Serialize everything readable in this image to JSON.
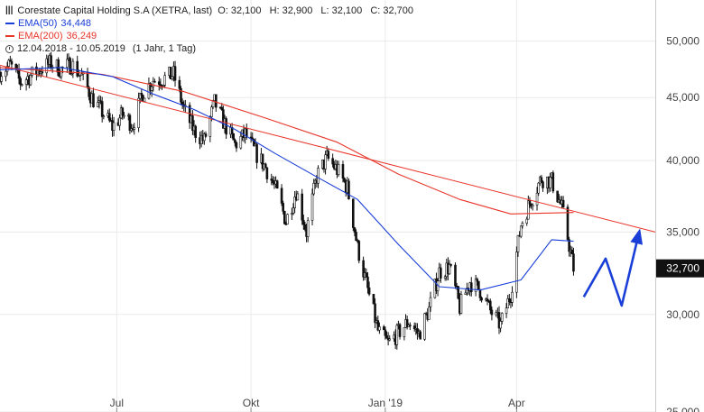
{
  "legend": {
    "title": "Corestate Capital Holding S.A (XETRA, last)",
    "ohlc": {
      "o": "O: 32,100",
      "h": "H: 32,900",
      "l": "L: 32,100",
      "c": "C: 32,700"
    },
    "ema50": {
      "label": "EMA(50)",
      "value": "34,448",
      "color": "#1a3fd8"
    },
    "ema200": {
      "label": "EMA(200)",
      "value": "36,249",
      "color": "#e8352a"
    },
    "range": "12.04.2018 - 10.05.2019",
    "period": "(1 Jahr, 1 Tag)"
  },
  "chart_data": {
    "type": "candlestick-line",
    "y_scale": "log",
    "ylim": [
      25,
      54
    ],
    "y_ticks": [
      {
        "value": 25,
        "label": "25,000"
      },
      {
        "value": 30,
        "label": "30,000"
      },
      {
        "value": 35,
        "label": "35,000"
      },
      {
        "value": 40,
        "label": "40,000"
      },
      {
        "value": 45,
        "label": "45,000"
      },
      {
        "value": 50,
        "label": "50,000"
      }
    ],
    "x_ticks": [
      {
        "date": "2018-07-01",
        "label": "Jul"
      },
      {
        "date": "2018-10-01",
        "label": "Okt"
      },
      {
        "date": "2019-01-01",
        "label": "Jan '19"
      },
      {
        "date": "2019-04-01",
        "label": "Apr"
      }
    ],
    "x_range": [
      "2018-04-12",
      "2019-07-05"
    ],
    "current_price": {
      "value": 32.7,
      "label": "32,700",
      "color": "#111111"
    },
    "close_series": [
      [
        "2018-04-12",
        47.2
      ],
      [
        "2018-04-19",
        47.8
      ],
      [
        "2018-04-26",
        46.3
      ],
      [
        "2018-05-03",
        46.9
      ],
      [
        "2018-05-10",
        47.5
      ],
      [
        "2018-05-17",
        48.0
      ],
      [
        "2018-05-24",
        47.4
      ],
      [
        "2018-05-31",
        47.9
      ],
      [
        "2018-06-07",
        46.8
      ],
      [
        "2018-06-14",
        45.0
      ],
      [
        "2018-06-21",
        43.8
      ],
      [
        "2018-06-28",
        42.6
      ],
      [
        "2018-07-05",
        43.6
      ],
      [
        "2018-07-12",
        42.8
      ],
      [
        "2018-07-19",
        45.4
      ],
      [
        "2018-07-26",
        46.5
      ],
      [
        "2018-08-02",
        46.6
      ],
      [
        "2018-08-09",
        47.0
      ],
      [
        "2018-08-16",
        44.0
      ],
      [
        "2018-08-23",
        42.3
      ],
      [
        "2018-08-30",
        41.5
      ],
      [
        "2018-09-06",
        44.6
      ],
      [
        "2018-09-13",
        42.8
      ],
      [
        "2018-09-20",
        41.2
      ],
      [
        "2018-09-27",
        42.0
      ],
      [
        "2018-10-04",
        40.6
      ],
      [
        "2018-10-11",
        39.5
      ],
      [
        "2018-10-18",
        37.9
      ],
      [
        "2018-10-25",
        35.7
      ],
      [
        "2018-11-01",
        37.8
      ],
      [
        "2018-11-08",
        35.0
      ],
      [
        "2018-11-15",
        38.8
      ],
      [
        "2018-11-22",
        40.2
      ],
      [
        "2018-11-29",
        39.3
      ],
      [
        "2018-12-06",
        38.0
      ],
      [
        "2018-12-13",
        34.0
      ],
      [
        "2018-12-20",
        31.4
      ],
      [
        "2018-12-27",
        29.1
      ],
      [
        "2019-01-03",
        28.4
      ],
      [
        "2019-01-10",
        29.0
      ],
      [
        "2019-01-17",
        29.6
      ],
      [
        "2019-01-24",
        28.9
      ],
      [
        "2019-01-31",
        30.3
      ],
      [
        "2019-02-07",
        32.5
      ],
      [
        "2019-02-14",
        32.8
      ],
      [
        "2019-02-21",
        30.4
      ],
      [
        "2019-02-28",
        31.9
      ],
      [
        "2019-03-07",
        31.4
      ],
      [
        "2019-03-14",
        30.2
      ],
      [
        "2019-03-21",
        29.4
      ],
      [
        "2019-03-28",
        31.2
      ],
      [
        "2019-04-04",
        35.5
      ],
      [
        "2019-04-11",
        37.2
      ],
      [
        "2019-04-18",
        38.7
      ],
      [
        "2019-04-25",
        38.5
      ],
      [
        "2019-05-02",
        36.6
      ],
      [
        "2019-05-10",
        32.7
      ]
    ],
    "ema50_series": [
      [
        "2018-04-12",
        47.4
      ],
      [
        "2018-05-24",
        47.6
      ],
      [
        "2018-06-28",
        46.8
      ],
      [
        "2018-07-26",
        45.3
      ],
      [
        "2018-08-23",
        44.0
      ],
      [
        "2018-09-20",
        42.4
      ],
      [
        "2018-10-18",
        40.5
      ],
      [
        "2018-11-15",
        38.8
      ],
      [
        "2018-12-13",
        37.2
      ],
      [
        "2019-01-10",
        34.2
      ],
      [
        "2019-02-07",
        31.6
      ],
      [
        "2019-03-07",
        31.4
      ],
      [
        "2019-04-04",
        32.0
      ],
      [
        "2019-04-25",
        34.5
      ],
      [
        "2019-05-10",
        34.4
      ]
    ],
    "ema200_series": [
      [
        "2018-04-12",
        47.6
      ],
      [
        "2018-06-21",
        47.0
      ],
      [
        "2018-08-16",
        45.5
      ],
      [
        "2018-10-11",
        43.3
      ],
      [
        "2018-11-29",
        41.4
      ],
      [
        "2019-01-10",
        39.0
      ],
      [
        "2019-02-21",
        37.2
      ],
      [
        "2019-03-28",
        36.2
      ],
      [
        "2019-05-10",
        36.3
      ]
    ],
    "trendline": {
      "from": [
        "2018-04-12",
        47.8
      ],
      "to": [
        "2019-07-05",
        35.0
      ],
      "color": "#e8352a"
    },
    "forecast_arrow": {
      "points": [
        [
          "2019-05-17",
          31.0
        ],
        [
          "2019-06-01",
          33.3
        ],
        [
          "2019-06-12",
          30.5
        ],
        [
          "2019-06-24",
          35.0
        ]
      ],
      "color": "#1a3fd8"
    }
  }
}
